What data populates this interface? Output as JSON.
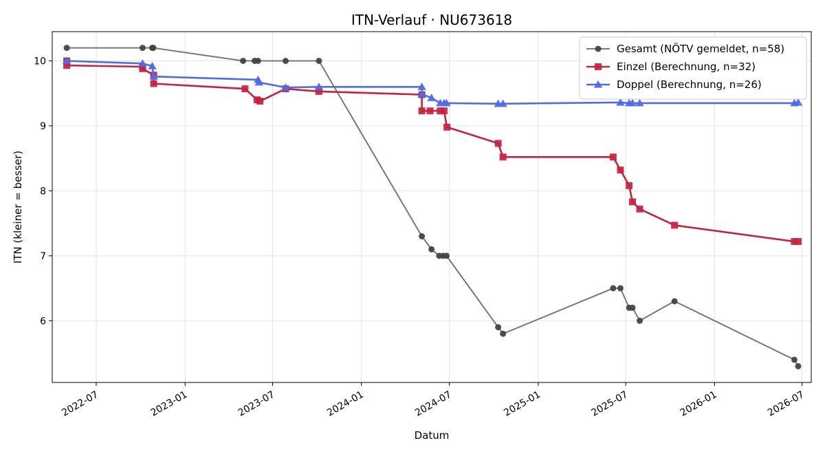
{
  "chart_data": {
    "type": "line",
    "title": "ITN-Verlauf · NU673618",
    "xlabel": "Datum",
    "ylabel": "ITN  (kleiner = besser)",
    "xlim": [
      "2022-04-01",
      "2026-07-20"
    ],
    "ylim": [
      5.05,
      10.45
    ],
    "x_ticks": [
      "2022-07",
      "2023-01",
      "2023-07",
      "2024-01",
      "2024-07",
      "2025-01",
      "2025-07",
      "2026-01",
      "2026-07"
    ],
    "y_ticks": [
      6,
      7,
      8,
      9,
      10
    ],
    "grid": true,
    "legend_position": "top-right",
    "series": [
      {
        "name": "Gesamt (NÖTV gemeldet, n=58)",
        "color": "#777777",
        "marker": "circle",
        "marker_color": "#444444",
        "points": [
          {
            "x": "2022-05-01",
            "y": 10.2
          },
          {
            "x": "2022-10-05",
            "y": 10.2
          },
          {
            "x": "2022-10-25",
            "y": 10.2
          },
          {
            "x": "2022-10-27",
            "y": 10.2
          },
          {
            "x": "2023-05-01",
            "y": 10.0
          },
          {
            "x": "2023-05-25",
            "y": 10.0
          },
          {
            "x": "2023-06-01",
            "y": 10.0
          },
          {
            "x": "2023-07-28",
            "y": 10.0
          },
          {
            "x": "2023-10-05",
            "y": 10.0
          },
          {
            "x": "2024-05-05",
            "y": 7.3
          },
          {
            "x": "2024-05-25",
            "y": 7.1
          },
          {
            "x": "2024-06-10",
            "y": 7.0
          },
          {
            "x": "2024-06-18",
            "y": 7.0
          },
          {
            "x": "2024-06-25",
            "y": 7.0
          },
          {
            "x": "2024-10-10",
            "y": 5.9
          },
          {
            "x": "2024-10-20",
            "y": 5.8
          },
          {
            "x": "2025-06-05",
            "y": 6.5
          },
          {
            "x": "2025-06-20",
            "y": 6.5
          },
          {
            "x": "2025-07-08",
            "y": 6.2
          },
          {
            "x": "2025-07-15",
            "y": 6.2
          },
          {
            "x": "2025-07-30",
            "y": 6.0
          },
          {
            "x": "2025-10-10",
            "y": 6.3
          },
          {
            "x": "2026-06-15",
            "y": 5.4
          },
          {
            "x": "2026-06-23",
            "y": 5.3
          }
        ]
      },
      {
        "name": "Einzel (Berechnung, n=32)",
        "color": "#c8213e",
        "marker": "square",
        "marker_color": "#c8213e",
        "points": [
          {
            "x": "2022-05-01",
            "y": 10.0
          },
          {
            "x": "2022-05-01",
            "y": 9.93
          },
          {
            "x": "2022-10-05",
            "y": 9.91
          },
          {
            "x": "2022-10-05",
            "y": 9.88
          },
          {
            "x": "2022-10-28",
            "y": 9.78
          },
          {
            "x": "2022-10-28",
            "y": 9.65
          },
          {
            "x": "2023-05-05",
            "y": 9.57
          },
          {
            "x": "2023-05-30",
            "y": 9.4
          },
          {
            "x": "2023-06-05",
            "y": 9.38
          },
          {
            "x": "2023-07-28",
            "y": 9.57
          },
          {
            "x": "2023-10-05",
            "y": 9.53
          },
          {
            "x": "2024-05-05",
            "y": 9.48
          },
          {
            "x": "2024-05-05",
            "y": 9.23
          },
          {
            "x": "2024-05-22",
            "y": 9.23
          },
          {
            "x": "2024-06-12",
            "y": 9.23
          },
          {
            "x": "2024-06-20",
            "y": 9.23
          },
          {
            "x": "2024-06-26",
            "y": 8.98
          },
          {
            "x": "2024-10-10",
            "y": 8.73
          },
          {
            "x": "2024-10-20",
            "y": 8.52
          },
          {
            "x": "2025-06-05",
            "y": 8.52
          },
          {
            "x": "2025-06-20",
            "y": 8.32
          },
          {
            "x": "2025-07-08",
            "y": 8.08
          },
          {
            "x": "2025-07-15",
            "y": 7.83
          },
          {
            "x": "2025-07-30",
            "y": 7.72
          },
          {
            "x": "2025-10-10",
            "y": 7.47
          },
          {
            "x": "2026-06-15",
            "y": 7.22
          },
          {
            "x": "2026-06-23",
            "y": 7.22
          }
        ]
      },
      {
        "name": "Doppel (Berechnung, n=26)",
        "color": "#4e6cea",
        "marker": "triangle",
        "marker_color": "#4e6cea",
        "points": [
          {
            "x": "2022-05-01",
            "y": 10.0
          },
          {
            "x": "2022-10-05",
            "y": 9.96
          },
          {
            "x": "2022-10-25",
            "y": 9.92
          },
          {
            "x": "2022-10-28",
            "y": 9.76
          },
          {
            "x": "2023-06-01",
            "y": 9.71
          },
          {
            "x": "2023-06-03",
            "y": 9.67
          },
          {
            "x": "2023-07-28",
            "y": 9.59
          },
          {
            "x": "2023-10-05",
            "y": 9.6
          },
          {
            "x": "2024-05-05",
            "y": 9.6
          },
          {
            "x": "2024-05-05",
            "y": 9.49
          },
          {
            "x": "2024-05-25",
            "y": 9.43
          },
          {
            "x": "2024-06-12",
            "y": 9.35
          },
          {
            "x": "2024-06-20",
            "y": 9.35
          },
          {
            "x": "2024-06-25",
            "y": 9.35
          },
          {
            "x": "2024-10-10",
            "y": 9.34
          },
          {
            "x": "2024-10-20",
            "y": 9.34
          },
          {
            "x": "2025-06-20",
            "y": 9.36
          },
          {
            "x": "2025-07-08",
            "y": 9.35
          },
          {
            "x": "2025-07-15",
            "y": 9.35
          },
          {
            "x": "2025-07-30",
            "y": 9.35
          },
          {
            "x": "2026-06-15",
            "y": 9.35
          },
          {
            "x": "2026-06-23",
            "y": 9.36
          }
        ]
      }
    ]
  }
}
